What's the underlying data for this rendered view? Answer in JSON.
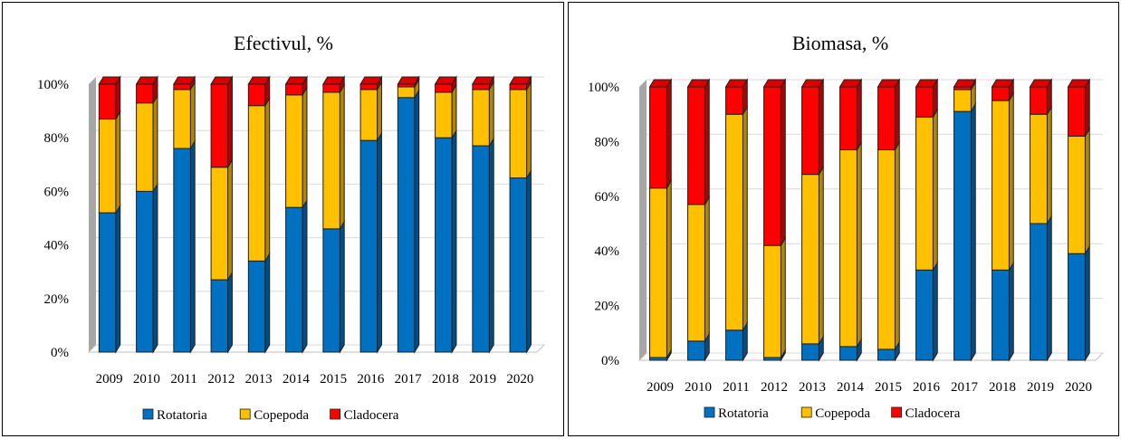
{
  "colors": {
    "Rotatoria": "#0070C0",
    "Copepoda": "#FFC000",
    "Cladocera": "#FF0000"
  },
  "chart_data": [
    {
      "type": "bar",
      "stacked": true,
      "title": "Efectivul, %",
      "categories": [
        "2009",
        "2010",
        "2011",
        "2012",
        "2013",
        "2014",
        "2015",
        "2016",
        "2017",
        "2018",
        "2019",
        "2020"
      ],
      "series": [
        {
          "name": "Rotatoria",
          "values": [
            52,
            60,
            76,
            27,
            34,
            54,
            46,
            79,
            95,
            80,
            77,
            65
          ]
        },
        {
          "name": "Copepoda",
          "values": [
            35,
            33,
            22,
            42,
            58,
            42,
            51,
            19,
            4,
            17,
            21,
            33
          ]
        },
        {
          "name": "Cladocera",
          "values": [
            13,
            7,
            2,
            31,
            8,
            4,
            3,
            2,
            1,
            3,
            2,
            2
          ]
        }
      ],
      "yticks": [
        "0%",
        "20%",
        "40%",
        "60%",
        "80%",
        "100%"
      ],
      "ylim": [
        0,
        100
      ],
      "grid": true,
      "legend": "bottom"
    },
    {
      "type": "bar",
      "stacked": true,
      "title": "Biomasa, %",
      "categories": [
        "2009",
        "2010",
        "2011",
        "2012",
        "2013",
        "2014",
        "2015",
        "2016",
        "2017",
        "2018",
        "2019",
        "2020"
      ],
      "series": [
        {
          "name": "Rotatoria",
          "values": [
            1,
            7,
            11,
            1,
            6,
            5,
            4,
            33,
            91,
            33,
            50,
            39
          ]
        },
        {
          "name": "Copepoda",
          "values": [
            62,
            50,
            79,
            41,
            62,
            72,
            73,
            56,
            8,
            62,
            40,
            43
          ]
        },
        {
          "name": "Cladocera",
          "values": [
            37,
            43,
            10,
            58,
            32,
            23,
            23,
            11,
            1,
            5,
            10,
            18
          ]
        }
      ],
      "yticks": [
        "0%",
        "20%",
        "40%",
        "60%",
        "80%",
        "100%"
      ],
      "ylim": [
        0,
        100
      ],
      "grid": true,
      "legend": "bottom"
    }
  ]
}
